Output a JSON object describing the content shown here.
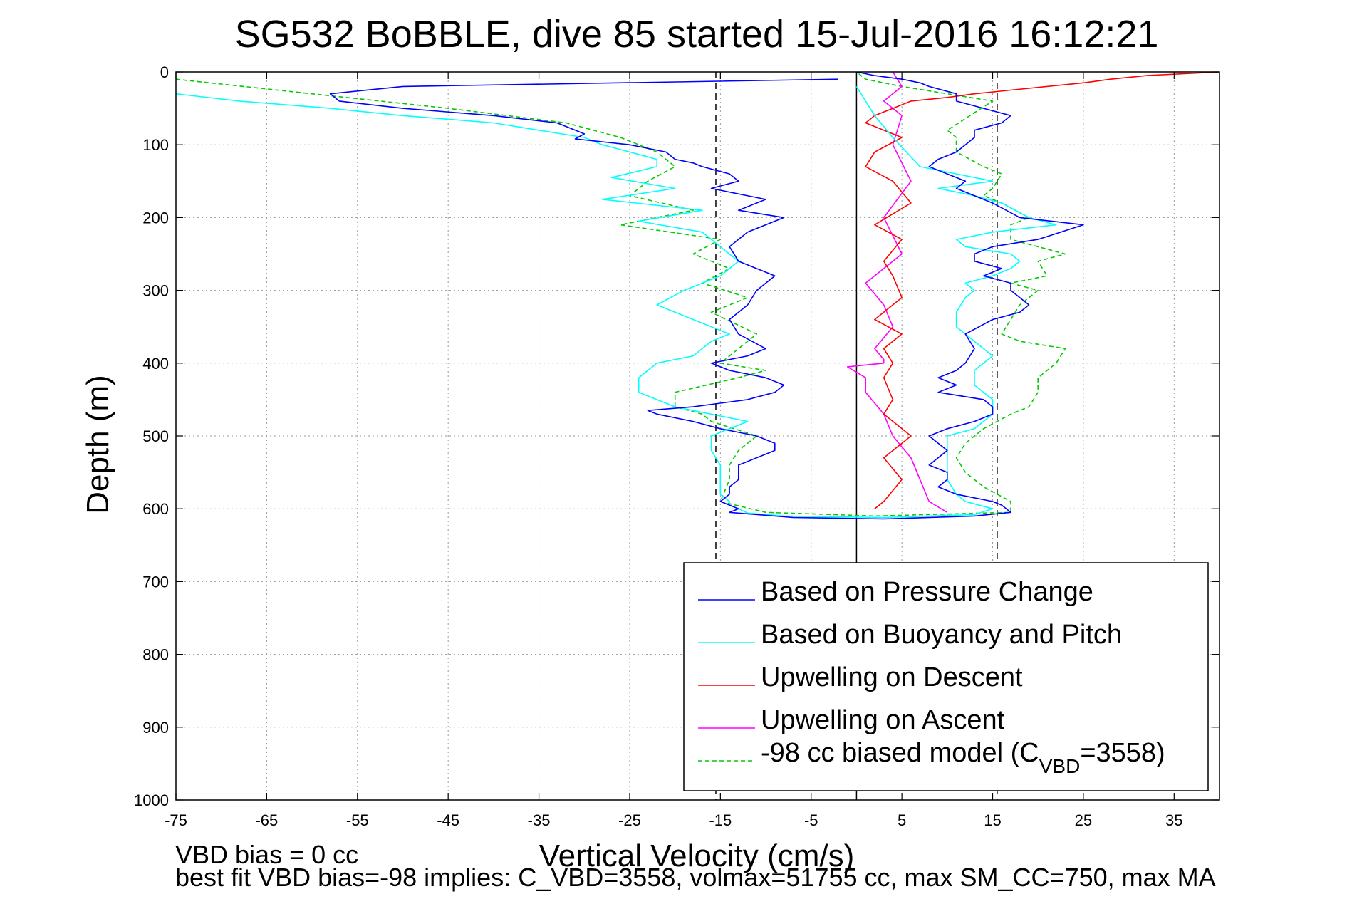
{
  "chart_data": {
    "type": "line",
    "title": "SG532 BoBBLE, dive 85 started 15-Jul-2016 16:12:21",
    "xlabel": "Vertical Velocity (cm/s)",
    "ylabel": "Depth (m)",
    "xlim": [
      -75,
      40
    ],
    "ylim": [
      0,
      1000
    ],
    "y_inverted": true,
    "grid": true,
    "x_ticks": [
      -75,
      -65,
      -55,
      -45,
      -35,
      -25,
      -15,
      -5,
      5,
      15,
      25,
      35
    ],
    "y_ticks": [
      0,
      100,
      200,
      300,
      400,
      500,
      600,
      700,
      800,
      900,
      1000
    ],
    "reference_lines": {
      "dashed_x": [
        -15.5,
        15.5
      ],
      "solid_x": [
        0
      ]
    },
    "legend_position": "bottom-right",
    "legend": [
      {
        "label": "Based on Pressure Change",
        "color": "#0000ff",
        "dash": "solid"
      },
      {
        "label": "Based on Buoyancy and Pitch",
        "color": "#00ffff",
        "dash": "solid"
      },
      {
        "label": "Upwelling on Descent",
        "color": "#ff0000",
        "dash": "solid"
      },
      {
        "label": "Upwelling on Ascent",
        "color": "#ff00ff",
        "dash": "solid"
      },
      {
        "label": "-98 cc biased model (C",
        "sub": "VBD",
        "suffix": "=3558)",
        "color": "#00cc00",
        "dash": "dashed"
      }
    ],
    "series": [
      {
        "name": "Based on Pressure Change",
        "color": "#0000ff",
        "x": [
          -2,
          -50,
          -58,
          -57,
          -50,
          -40,
          -33,
          -30,
          -31,
          -25,
          -21,
          -20,
          -18,
          -17,
          -14,
          -13,
          -16,
          -10,
          -13,
          -8,
          -12,
          -14,
          -13,
          -9,
          -11,
          -12,
          -14,
          -13,
          -10,
          -12,
          -16,
          -14,
          -10,
          -8,
          -9,
          -12,
          -15,
          -18,
          -23,
          -22,
          -18,
          -15,
          -11,
          -9,
          -9,
          -13,
          -13,
          -14,
          -14,
          -15,
          -14,
          -13,
          -14,
          -7,
          3,
          13,
          17,
          16,
          15,
          11,
          9,
          10,
          10,
          8,
          10,
          8,
          10,
          13,
          15,
          15,
          14,
          9,
          11,
          9,
          11,
          12,
          13,
          12,
          15,
          18,
          19,
          17,
          17,
          14,
          16,
          13,
          13,
          15,
          20,
          25,
          18,
          15,
          13,
          11,
          12,
          10,
          8,
          9,
          11,
          12,
          13,
          13,
          16,
          17,
          14,
          11,
          11,
          8,
          7,
          5,
          2,
          0
        ],
        "y": [
          10,
          20,
          30,
          40,
          50,
          60,
          70,
          85,
          92,
          100,
          110,
          120,
          125,
          130,
          140,
          150,
          160,
          175,
          190,
          200,
          220,
          240,
          260,
          280,
          300,
          320,
          340,
          360,
          380,
          390,
          400,
          410,
          420,
          430,
          440,
          450,
          455,
          460,
          465,
          470,
          480,
          490,
          500,
          510,
          520,
          540,
          560,
          570,
          580,
          590,
          595,
          600,
          605,
          612,
          614,
          610,
          605,
          595,
          590,
          580,
          570,
          560,
          550,
          540,
          520,
          500,
          490,
          480,
          470,
          460,
          450,
          440,
          430,
          420,
          410,
          400,
          380,
          360,
          340,
          330,
          320,
          300,
          290,
          280,
          270,
          260,
          250,
          240,
          230,
          210,
          200,
          180,
          170,
          160,
          150,
          140,
          130,
          120,
          110,
          100,
          90,
          80,
          70,
          60,
          50,
          40,
          30,
          20,
          15,
          10,
          5,
          0
        ]
      },
      {
        "name": "Based on Buoyancy and Pitch",
        "color": "#00ffff",
        "x": [
          -75,
          -68,
          -58,
          -50,
          -40,
          -35,
          -30,
          -28,
          -25,
          -22,
          -22,
          -27,
          -20,
          -28,
          -17,
          -24,
          -17,
          -15,
          -13,
          -15,
          -19,
          -22,
          -18,
          -14,
          -16,
          -17,
          -18,
          -22,
          -24,
          -24,
          -20,
          -12,
          -16,
          -16,
          -15,
          -15,
          -15,
          -14,
          -14,
          -13,
          -12,
          -8,
          3,
          13,
          15,
          12,
          11,
          10,
          10,
          10,
          10,
          13,
          15,
          15,
          13,
          13,
          15,
          13,
          11,
          11,
          12,
          13,
          12,
          15,
          17,
          18,
          17,
          12,
          11,
          15,
          22,
          19,
          16,
          13,
          9,
          15,
          7,
          4,
          2,
          0
        ],
        "y": [
          30,
          40,
          50,
          60,
          70,
          80,
          90,
          100,
          110,
          120,
          130,
          145,
          160,
          175,
          190,
          205,
          220,
          240,
          260,
          280,
          300,
          320,
          340,
          360,
          370,
          380,
          390,
          400,
          420,
          440,
          460,
          480,
          500,
          520,
          540,
          560,
          580,
          590,
          595,
          600,
          606,
          610,
          612,
          608,
          600,
          590,
          580,
          560,
          540,
          520,
          500,
          490,
          470,
          450,
          430,
          410,
          390,
          370,
          350,
          330,
          310,
          300,
          290,
          280,
          270,
          260,
          250,
          240,
          230,
          220,
          210,
          200,
          180,
          170,
          160,
          150,
          130,
          90,
          60,
          20
        ]
      },
      {
        "name": "Upwelling on Descent",
        "color": "#ff0000",
        "x": [
          40,
          32,
          28,
          25,
          17,
          13,
          10,
          6,
          4,
          2,
          1,
          3,
          5,
          2,
          1,
          4,
          6,
          2,
          5,
          3,
          4,
          5,
          2,
          5,
          3,
          4,
          3,
          4,
          3,
          6,
          3,
          5,
          3,
          2
        ],
        "y": [
          0,
          5,
          10,
          15,
          25,
          30,
          35,
          40,
          50,
          60,
          70,
          80,
          90,
          110,
          130,
          150,
          180,
          210,
          230,
          260,
          280,
          310,
          340,
          360,
          380,
          400,
          420,
          450,
          470,
          500,
          530,
          560,
          590,
          600
        ]
      },
      {
        "name": "Upwelling on Ascent",
        "color": "#ff00ff",
        "x": [
          4,
          5,
          3,
          5,
          4,
          6,
          3,
          5,
          1,
          3,
          4,
          2,
          3,
          3,
          -1,
          1,
          1,
          3,
          4,
          6,
          7,
          8,
          10
        ],
        "y": [
          0,
          20,
          40,
          60,
          100,
          150,
          200,
          250,
          290,
          320,
          350,
          380,
          395,
          400,
          405,
          420,
          440,
          470,
          500,
          530,
          560,
          590,
          605
        ]
      },
      {
        "name": "-98 cc biased model (C_VBD=3558)",
        "color": "#00cc00",
        "dash": "dashed",
        "x": [
          -75,
          -60,
          -45,
          -32,
          -26,
          -22,
          -20,
          -23,
          -25,
          -18,
          -26,
          -15,
          -18,
          -14,
          -17,
          -12,
          -16,
          -11,
          -13,
          -15,
          -10,
          -13,
          -20,
          -20,
          -17,
          -16,
          -11,
          -13,
          -14,
          -14,
          -15,
          -10,
          2,
          17,
          17,
          14,
          12,
          11,
          12,
          14,
          17,
          19,
          20,
          20,
          22,
          23,
          18,
          16,
          17,
          18,
          20,
          17,
          21,
          20,
          23,
          20,
          17,
          17,
          19,
          16,
          14,
          15,
          16,
          14,
          11,
          11,
          10,
          15,
          5,
          1,
          0
        ],
        "y": [
          10,
          30,
          50,
          70,
          90,
          110,
          130,
          150,
          170,
          190,
          210,
          230,
          250,
          270,
          290,
          310,
          330,
          360,
          380,
          400,
          410,
          420,
          440,
          460,
          470,
          480,
          500,
          520,
          540,
          560,
          590,
          605,
          610,
          605,
          590,
          570,
          550,
          530,
          510,
          490,
          470,
          460,
          440,
          420,
          400,
          380,
          370,
          360,
          340,
          320,
          300,
          290,
          280,
          260,
          250,
          240,
          230,
          210,
          200,
          180,
          170,
          160,
          140,
          130,
          110,
          90,
          80,
          40,
          20,
          10,
          0
        ]
      }
    ]
  },
  "footer": {
    "line1": "VBD bias = 0 cc",
    "line2": "best fit VBD bias=-98 implies: C_VBD=3558, volmax=51755 cc, max SM_CC=750, max MA"
  }
}
